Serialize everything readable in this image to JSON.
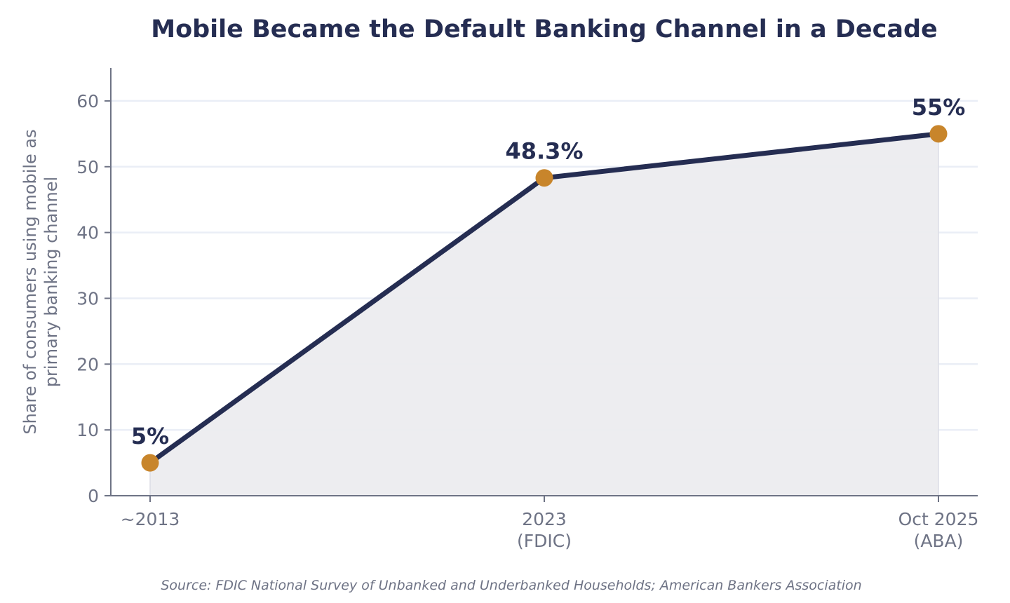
{
  "chart_data": {
    "type": "line",
    "title": "Mobile Became the Default Banking Channel in a Decade",
    "ylabel_lines": [
      "Share of consumers using mobile as",
      "primary banking channel"
    ],
    "xlabel": "",
    "categories": [
      [
        "~2013"
      ],
      [
        "2023",
        "(FDIC)"
      ],
      [
        "Oct 2025",
        "(ABA)"
      ]
    ],
    "series": [
      {
        "values": [
          5,
          48.3,
          55
        ],
        "data_labels": [
          "5%",
          "48.3%",
          "55%"
        ]
      }
    ],
    "ylim": [
      0,
      65
    ],
    "yticks": [
      0,
      10,
      20,
      30,
      40,
      50,
      60
    ],
    "grid": "horizontal",
    "area_fill": true,
    "source": "Source: FDIC National Survey of Unbanked and Underbanked Households; American Bankers Association",
    "colors": {
      "line": "#252d52",
      "marker": "#c8852b",
      "area": "#ececef",
      "grid": "#eaeef6",
      "axis": "#6e7385",
      "text_muted": "#6e7385",
      "title": "#252d52"
    }
  }
}
